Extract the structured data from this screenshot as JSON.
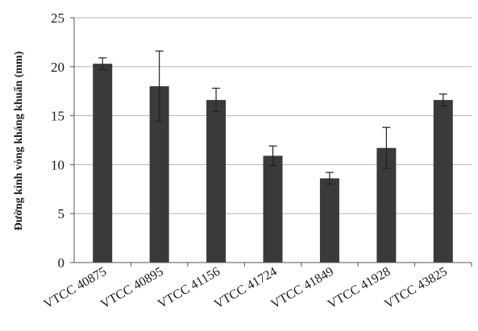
{
  "chart_data": {
    "type": "bar",
    "title": "",
    "xlabel": "",
    "ylabel": "Đường kính vòng kháng khuẩn (mm)",
    "categories": [
      "VTCC 40875",
      "VTCC 40895",
      "VTCC 41156",
      "VTCC 41724",
      "VTCC 41849",
      "VTCC 41928",
      "VTCC 43825"
    ],
    "values": [
      20.3,
      18.0,
      16.6,
      10.9,
      8.6,
      11.7,
      16.6
    ],
    "error_upper": [
      20.9,
      21.6,
      17.8,
      11.9,
      9.2,
      13.8,
      17.2
    ],
    "error_lower": [
      19.7,
      14.4,
      15.4,
      9.9,
      8.0,
      9.6,
      16.0
    ],
    "ylim": [
      0,
      25
    ],
    "yticks": [
      "0",
      "5",
      "10",
      "15",
      "20",
      "25"
    ],
    "grid": true,
    "legend": "none",
    "colors": {
      "bar": "#3a3a3a",
      "grid": "#b5b5b5",
      "axis": "#555555",
      "text": "#1a1a1a"
    }
  }
}
